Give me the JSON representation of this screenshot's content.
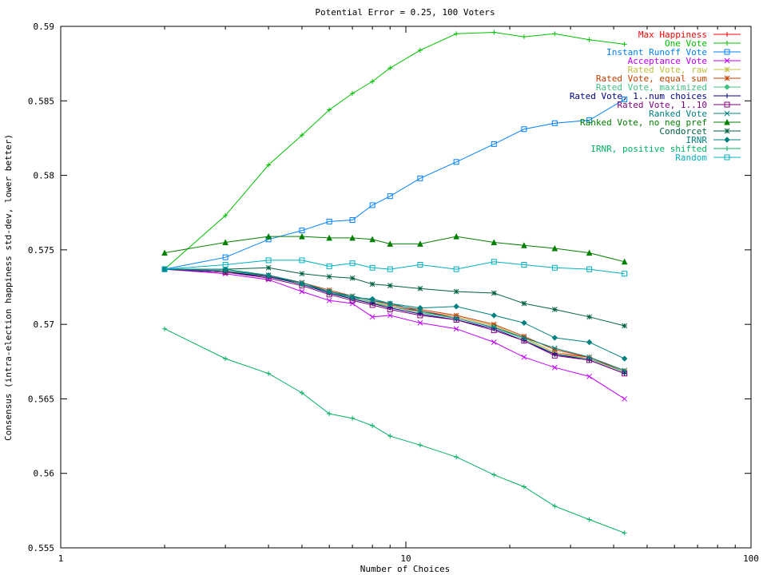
{
  "chart_data": {
    "type": "line",
    "title": "Potential Error = 0.25, 100 Voters",
    "xlabel": "Number of Choices",
    "ylabel": "Consensus (intra-election happiness std-dev, lower better)",
    "x_scale": "log",
    "xlim": [
      1,
      100
    ],
    "ylim": [
      0.555,
      0.59
    ],
    "x_ticks": [
      1,
      10,
      100
    ],
    "x_tick_labels": [
      "1",
      "10",
      "100"
    ],
    "y_ticks": [
      0.555,
      0.56,
      0.565,
      0.57,
      0.575,
      0.58,
      0.585,
      0.59
    ],
    "y_tick_labels": [
      "0.555",
      "0.56",
      "0.565",
      "0.57",
      "0.575",
      "0.58",
      "0.585",
      "0.59"
    ],
    "grid": false,
    "legend_position": "top-right",
    "x": [
      2,
      3,
      4,
      5,
      6,
      7,
      8,
      9,
      11,
      14,
      18,
      22,
      27,
      34,
      43
    ],
    "series": [
      {
        "name": "Max Happiness",
        "color": "#ff0000",
        "marker": "plus",
        "values": [
          0.5737,
          0.5735,
          0.5732,
          0.5728,
          0.5722,
          0.5718,
          0.5715,
          0.5712,
          0.5709,
          0.5705,
          0.5699,
          0.5691,
          0.5681,
          0.5678,
          0.5668
        ]
      },
      {
        "name": "One Vote",
        "color": "#00c000",
        "marker": "plus",
        "values": [
          0.5737,
          0.5773,
          0.5807,
          0.5827,
          0.5844,
          0.5855,
          0.5863,
          0.5872,
          0.5884,
          0.5895,
          0.5896,
          0.5893,
          0.5895,
          0.5891,
          0.5888
        ]
      },
      {
        "name": "Instant Runoff Vote",
        "color": "#0080ff",
        "marker": "square",
        "values": [
          0.5737,
          0.5745,
          0.5757,
          0.5763,
          0.5769,
          0.577,
          0.578,
          0.5786,
          0.5798,
          0.5809,
          0.5821,
          0.5831,
          0.5835,
          0.5837,
          0.5851
        ]
      },
      {
        "name": "Acceptance Vote",
        "color": "#c000ff",
        "marker": "cross",
        "values": [
          0.5737,
          0.5734,
          0.573,
          0.5722,
          0.5716,
          0.5714,
          0.5705,
          0.5706,
          0.5701,
          0.5697,
          0.5688,
          0.5678,
          0.5671,
          0.5665,
          0.565
        ]
      },
      {
        "name": "Rated Vote, raw",
        "color": "#c0c040",
        "marker": "star",
        "values": [
          0.5737,
          0.5736,
          0.5732,
          0.5727,
          0.5721,
          0.5717,
          0.5714,
          0.5712,
          0.5708,
          0.5705,
          0.5699,
          0.5691,
          0.5681,
          0.5677,
          0.5668
        ]
      },
      {
        "name": "Rated Vote, equal sum",
        "color": "#c04000",
        "marker": "star",
        "values": [
          0.5737,
          0.5735,
          0.5733,
          0.5728,
          0.5723,
          0.5719,
          0.5716,
          0.5713,
          0.571,
          0.5706,
          0.57,
          0.5692,
          0.5683,
          0.5678,
          0.5669
        ]
      },
      {
        "name": "Rated Vote, maximized",
        "color": "#40c080",
        "marker": "diamond",
        "values": [
          0.5737,
          0.5736,
          0.5732,
          0.5727,
          0.5721,
          0.5718,
          0.5715,
          0.5712,
          0.5708,
          0.5704,
          0.5698,
          0.569,
          0.568,
          0.5677,
          0.5668
        ]
      },
      {
        "name": "Rated Vote, 1..num choices",
        "color": "#000080",
        "marker": "plus",
        "values": [
          0.5737,
          0.5735,
          0.5732,
          0.5727,
          0.5721,
          0.5717,
          0.5714,
          0.5711,
          0.5707,
          0.5703,
          0.5697,
          0.5689,
          0.568,
          0.5676,
          0.5667
        ]
      },
      {
        "name": "Rated Vote, 1..10",
        "color": "#800080",
        "marker": "square",
        "values": [
          0.5737,
          0.5735,
          0.5731,
          0.5726,
          0.572,
          0.5716,
          0.5713,
          0.571,
          0.5706,
          0.5703,
          0.5696,
          0.5689,
          0.5679,
          0.5676,
          0.5667
        ]
      },
      {
        "name": "Ranked Vote",
        "color": "#008080",
        "marker": "cross",
        "values": [
          0.5737,
          0.5736,
          0.5733,
          0.5728,
          0.5722,
          0.5719,
          0.5716,
          0.5714,
          0.5709,
          0.5704,
          0.5698,
          0.5691,
          0.5684,
          0.5678,
          0.5669
        ]
      },
      {
        "name": "Ranked Vote, no neg pref",
        "color": "#008000",
        "marker": "triangle",
        "values": [
          0.5748,
          0.5755,
          0.5759,
          0.5759,
          0.5758,
          0.5758,
          0.5757,
          0.5754,
          0.5754,
          0.5759,
          0.5755,
          0.5753,
          0.5751,
          0.5748,
          0.5742
        ]
      },
      {
        "name": "Condorcet",
        "color": "#006040",
        "marker": "star",
        "values": [
          0.5737,
          0.5737,
          0.5738,
          0.5734,
          0.5732,
          0.5731,
          0.5727,
          0.5726,
          0.5724,
          0.5722,
          0.5721,
          0.5714,
          0.571,
          0.5705,
          0.5699
        ]
      },
      {
        "name": "IRNR",
        "color": "#008080",
        "marker": "diamond",
        "values": [
          0.5737,
          0.5737,
          0.5733,
          0.5727,
          0.5722,
          0.5718,
          0.5717,
          0.5714,
          0.5711,
          0.5712,
          0.5706,
          0.5701,
          0.5691,
          0.5688,
          0.5677
        ]
      },
      {
        "name": "IRNR, positive shifted",
        "color": "#00b060",
        "marker": "plus",
        "values": [
          0.5697,
          0.5677,
          0.5667,
          0.5654,
          0.564,
          0.5637,
          0.5632,
          0.5625,
          0.5619,
          0.5611,
          0.5599,
          0.5591,
          0.5578,
          0.5569,
          0.556
        ]
      },
      {
        "name": "Random",
        "color": "#00b0c0",
        "marker": "square",
        "values": [
          0.5737,
          0.574,
          0.5743,
          0.5743,
          0.5739,
          0.5741,
          0.5738,
          0.5737,
          0.574,
          0.5737,
          0.5742,
          0.574,
          0.5738,
          0.5737,
          0.5734
        ]
      }
    ]
  }
}
